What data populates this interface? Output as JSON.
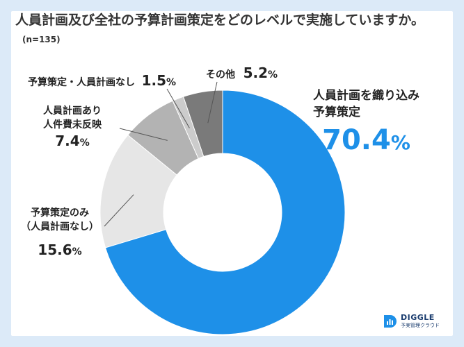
{
  "title": "人員計画及び全社の予算計画策定をどのレベルで実施していますか。",
  "sample_size": "(n=135)",
  "brand": {
    "name": "DIGGLE",
    "tagline": "予実管理クラウド"
  },
  "chart_data": {
    "type": "pie",
    "donut": true,
    "unit": "%",
    "slices": [
      {
        "label": "人員計画を織り込み予算策定",
        "lines": [
          "人員計画を織り込み",
          "予算策定"
        ],
        "value": 70.4,
        "color": "#1e90e8"
      },
      {
        "label": "予算策定のみ（人員計画なし）",
        "lines": [
          "予算策定のみ",
          "（人員計画なし）"
        ],
        "value": 15.6,
        "color": "#e6e6e6"
      },
      {
        "label": "人員計画あり人件費未反映",
        "lines": [
          "人員計画あり",
          "人件費未反映"
        ],
        "value": 7.4,
        "color": "#b3b3b3"
      },
      {
        "label": "予算策定・人員計画なし",
        "lines": [
          "予算策定・人員計画なし"
        ],
        "value": 1.5,
        "color": "#cccccc"
      },
      {
        "label": "その他",
        "lines": [
          "その他"
        ],
        "value": 5.2,
        "color": "#7a7a7a"
      }
    ]
  }
}
